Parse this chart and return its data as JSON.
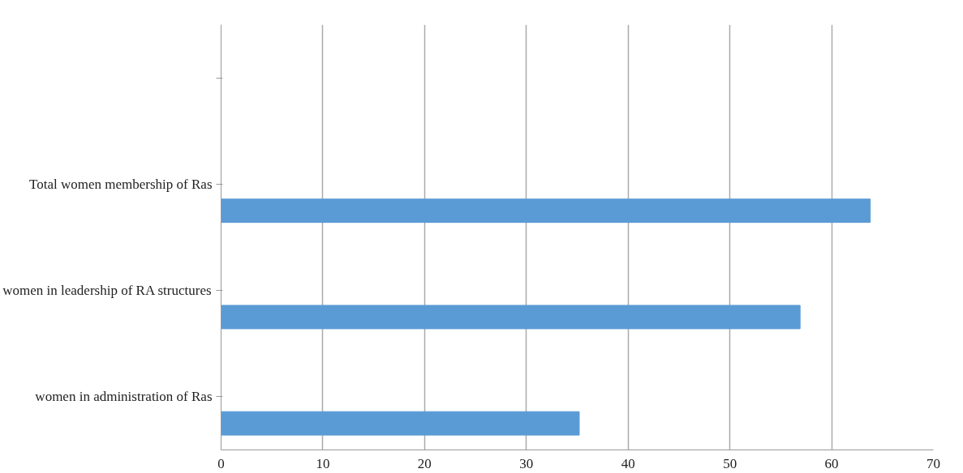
{
  "chart_data": {
    "type": "bar",
    "orientation": "horizontal",
    "categories": [
      null,
      "Total women membership of Ras",
      "women in leadership of RA structures",
      "women in administration of Ras"
    ],
    "values": [
      null,
      63.8,
      56.9,
      35.2
    ],
    "color": "#5b9bd5",
    "xlim": [
      0,
      70
    ],
    "xticks": [
      0,
      10,
      20,
      30,
      40,
      50,
      60,
      70
    ],
    "grid": "x"
  }
}
